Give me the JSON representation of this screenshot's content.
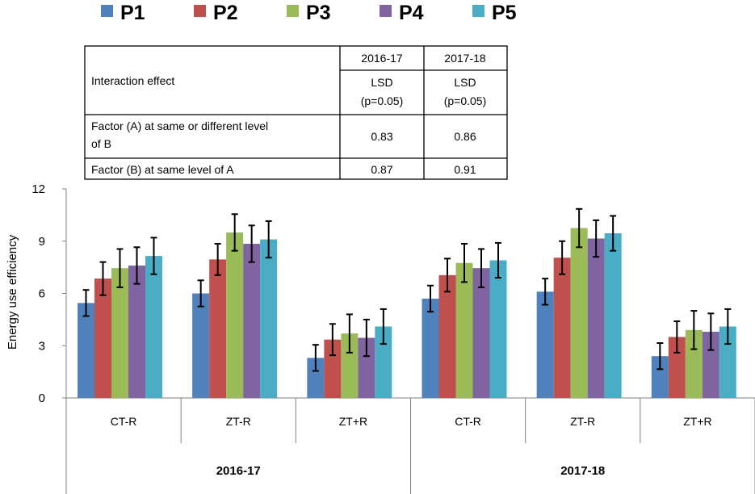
{
  "table": {
    "header_label": "Interaction effect",
    "col1_year": "2016-17",
    "col2_year": "2017-18",
    "col1_lsd": "LSD",
    "col1_p": "(p=0.05)",
    "col2_lsd": "LSD",
    "col2_p": "(p=0.05)",
    "row1_label_line1": "Factor (A) at same or different level",
    "row1_label_line2": "of B",
    "row1_v1": "0.83",
    "row1_v2": "0.86",
    "row2_label": "Factor (B) at same level of A",
    "row2_v1": "0.87",
    "row2_v2": "0.91"
  },
  "chart_data": {
    "type": "bar",
    "title": "",
    "xlabel": "",
    "ylabel": "Energy use efficiency",
    "ylim": [
      0,
      12
    ],
    "yticks": [
      0,
      3,
      6,
      9,
      12
    ],
    "categories": [
      "CT-R",
      "ZT-R",
      "ZT+R",
      "CT-R",
      "ZT-R",
      "ZT+R"
    ],
    "groups": [
      {
        "label": "2016-17",
        "categories": [
          "CT-R",
          "ZT-R",
          "ZT+R"
        ]
      },
      {
        "label": "2017-18",
        "categories": [
          "CT-R",
          "ZT-R",
          "ZT+R"
        ]
      }
    ],
    "legend_position": "top",
    "series": [
      {
        "name": "P1",
        "color": "#4F81BD",
        "values": [
          5.45,
          6.0,
          2.3,
          5.7,
          6.1,
          2.4
        ],
        "errors": [
          0.75,
          0.75,
          0.75,
          0.75,
          0.75,
          0.75
        ]
      },
      {
        "name": "P2",
        "color": "#C0504D",
        "values": [
          6.85,
          7.95,
          3.35,
          7.05,
          8.05,
          3.5
        ],
        "errors": [
          0.95,
          0.9,
          0.9,
          0.95,
          0.95,
          0.9
        ]
      },
      {
        "name": "P3",
        "color": "#9BBB59",
        "values": [
          7.45,
          9.5,
          3.7,
          7.75,
          9.75,
          3.9
        ],
        "errors": [
          1.1,
          1.05,
          1.1,
          1.1,
          1.1,
          1.1
        ]
      },
      {
        "name": "P4",
        "color": "#8064A2",
        "values": [
          7.6,
          8.85,
          3.45,
          7.45,
          9.15,
          3.8
        ],
        "errors": [
          1.05,
          1.05,
          1.05,
          1.1,
          1.05,
          1.05
        ]
      },
      {
        "name": "P5",
        "color": "#4BACC6",
        "values": [
          8.15,
          9.1,
          4.1,
          7.9,
          9.45,
          4.1
        ],
        "errors": [
          1.05,
          1.05,
          1.0,
          1.0,
          1.0,
          1.0
        ]
      }
    ]
  }
}
